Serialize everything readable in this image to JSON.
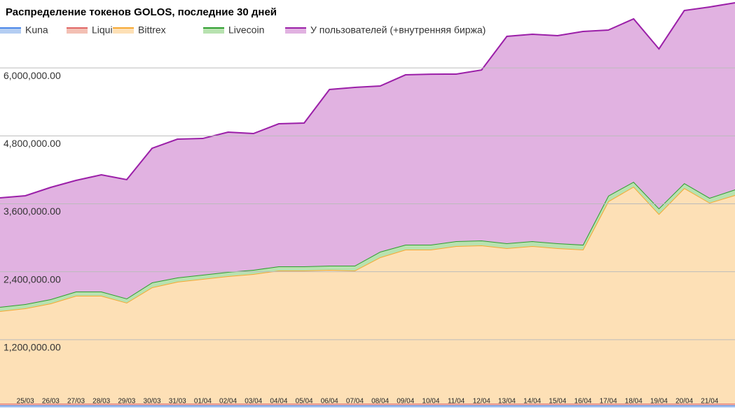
{
  "chart_data": {
    "type": "stacked_area",
    "title": "Распределение токенов GOLOS, последние 30 дней",
    "categories": [
      null,
      "25/03",
      "26/03",
      "27/03",
      "28/03",
      "29/03",
      "30/03",
      "31/03",
      "01/04",
      "02/04",
      "03/04",
      "04/04",
      "05/04",
      "06/04",
      "07/04",
      "08/04",
      "09/04",
      "10/04",
      "11/04",
      "12/04",
      "13/04",
      "14/04",
      "15/04",
      "16/04",
      "17/04",
      "18/04",
      "19/04",
      "20/04",
      "21/04",
      null
    ],
    "series": [
      {
        "name": "Kuna",
        "color": "#4a86e8",
        "fill": "#b4cdf2",
        "values": [
          40000,
          40000,
          40000,
          40000,
          40000,
          40000,
          40000,
          40000,
          40000,
          40000,
          40000,
          40000,
          40000,
          40000,
          40000,
          40000,
          40000,
          40000,
          40000,
          40000,
          40000,
          40000,
          40000,
          40000,
          40000,
          40000,
          40000,
          40000,
          40000,
          40000
        ]
      },
      {
        "name": "Liqui",
        "color": "#e06666",
        "fill": "#f3c0b4",
        "values": [
          30000,
          30000,
          30000,
          30000,
          30000,
          30000,
          30000,
          30000,
          30000,
          30000,
          30000,
          30000,
          30000,
          30000,
          30000,
          30000,
          30000,
          30000,
          30000,
          30000,
          30000,
          30000,
          30000,
          30000,
          30000,
          30000,
          30000,
          30000,
          30000,
          30000
        ]
      },
      {
        "name": "Bittrex",
        "color": "#f6a832",
        "fill": "#fde0b6",
        "values": [
          1634000,
          1684000,
          1770000,
          1906000,
          1906000,
          1783000,
          2054000,
          2153000,
          2202000,
          2252000,
          2289000,
          2351000,
          2351000,
          2363000,
          2351000,
          2585000,
          2721000,
          2721000,
          2783000,
          2795000,
          2746000,
          2783000,
          2746000,
          2721000,
          3573000,
          3833000,
          3351000,
          3808000,
          3549000,
          3684000
        ]
      },
      {
        "name": "Livecoin",
        "color": "#2e9e2e",
        "fill": "#b8e2b0",
        "values": [
          74000,
          74000,
          74000,
          74000,
          74000,
          74000,
          86000,
          74000,
          74000,
          74000,
          74000,
          74000,
          74000,
          74000,
          86000,
          99000,
          86000,
          86000,
          86000,
          86000,
          86000,
          86000,
          86000,
          86000,
          99000,
          86000,
          99000,
          86000,
          86000,
          99000
        ]
      },
      {
        "name": "У пользователей (+внутренняя биржа)",
        "color": "#9b1fa8",
        "fill": "#e1b2e1",
        "values": [
          1927000,
          1914000,
          1976000,
          1964000,
          2062000,
          2100000,
          2371000,
          2445000,
          2408000,
          2470000,
          2408000,
          2519000,
          2532000,
          3112000,
          3149000,
          2927000,
          3001000,
          3013000,
          2952000,
          3013000,
          3656000,
          3656000,
          3668000,
          3767000,
          2927000,
          2878000,
          2816000,
          3050000,
          3372000,
          3297000
        ]
      }
    ],
    "ylim": [
      0,
      7200000
    ],
    "yticks": [
      {
        "value": 1200000,
        "label": "1,200,000.00"
      },
      {
        "value": 2400000,
        "label": "2,400,000.00"
      },
      {
        "value": 3600000,
        "label": "3,600,000.00"
      },
      {
        "value": 4800000,
        "label": "4,800,000.00"
      },
      {
        "value": 6000000,
        "label": "6,000,000.00"
      }
    ],
    "grid": true
  }
}
